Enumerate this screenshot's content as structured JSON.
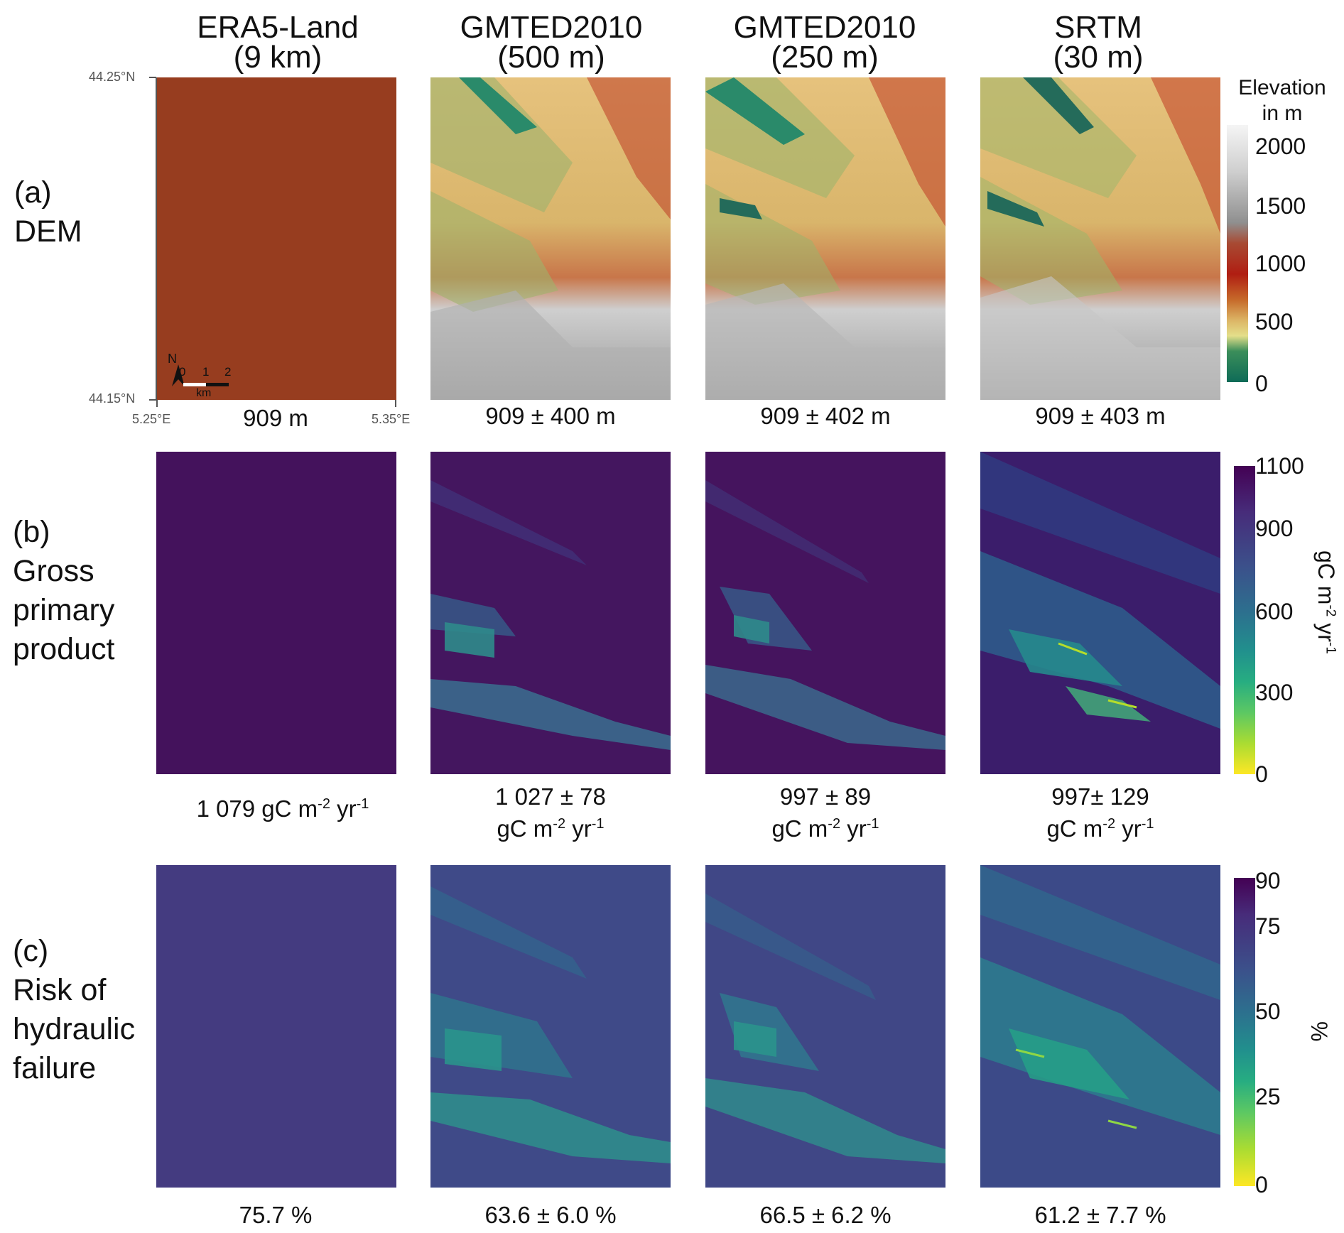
{
  "columns": [
    {
      "title_line1": "ERA5-Land",
      "title_line2": "(9 km)"
    },
    {
      "title_line1": "GMTED2010",
      "title_line2": "(500 m)"
    },
    {
      "title_line1": "GMTED2010",
      "title_line2": "(250 m)"
    },
    {
      "title_line1": "SRTM",
      "title_line2": "(30 m)"
    }
  ],
  "rows": [
    {
      "label_line1": "(a)",
      "label_line2": "DEM",
      "label_line3": ""
    },
    {
      "label_line1": "(b)",
      "label_line2": "Gross",
      "label_line3": "primary",
      "label_line4": "product"
    },
    {
      "label_line1": "(c)",
      "label_line2": "Risk of",
      "label_line3": "hydraulic",
      "label_line4": "failure"
    }
  ],
  "coords": {
    "lat_top": "44.25°N",
    "lat_bottom": "44.15°N",
    "lon_left": "5.25°E",
    "lon_right": "5.35°E"
  },
  "scalebar": {
    "north": "N",
    "t0": "0",
    "t1": "1",
    "t2": "2",
    "unit": "km"
  },
  "dem_stats": [
    "909 m",
    "909 ± 400 m",
    "909 ± 402 m",
    "909 ± 403 m"
  ],
  "gpp_stats": [
    {
      "value": "1 079 gC m",
      "exp": "-2",
      "mid": " yr",
      "exp2": "-1"
    },
    {
      "value": "1 027 ± 78",
      "unit": "gC m",
      "exp": "-2",
      "mid": " yr",
      "exp2": "-1"
    },
    {
      "value": "997 ± 89",
      "unit": "gC m",
      "exp": "-2",
      "mid": " yr",
      "exp2": "-1"
    },
    {
      "value": "997± 129",
      "unit": "gC m",
      "exp": "-2",
      "mid": " yr",
      "exp2": "-1"
    }
  ],
  "risk_stats": [
    "75.7 %",
    "63.6 ± 6.0 %",
    "66.5 ± 6.2 %",
    "61.2 ± 7.7 %"
  ],
  "colorbars": {
    "elevation": {
      "title_line1": "Elevation",
      "title_line2": "in m",
      "ticks": [
        "2000",
        "1500",
        "1000",
        "500",
        "0"
      ]
    },
    "gpp": {
      "ticks": [
        "1100",
        "900",
        "600",
        "300",
        "0"
      ],
      "unit_main": "gC m",
      "unit_exp": "-2",
      "unit_mid": " yr",
      "unit_exp2": "-1"
    },
    "risk": {
      "ticks": [
        "90",
        "75",
        "50",
        "25",
        "0"
      ],
      "unit": "%"
    }
  },
  "colors": {
    "era5_dem": "#973d1f",
    "era5_gpp": "#44125c",
    "era5_risk": "#443b80",
    "viridis_dark": "#440154",
    "viridis_yellow": "#fde725"
  }
}
